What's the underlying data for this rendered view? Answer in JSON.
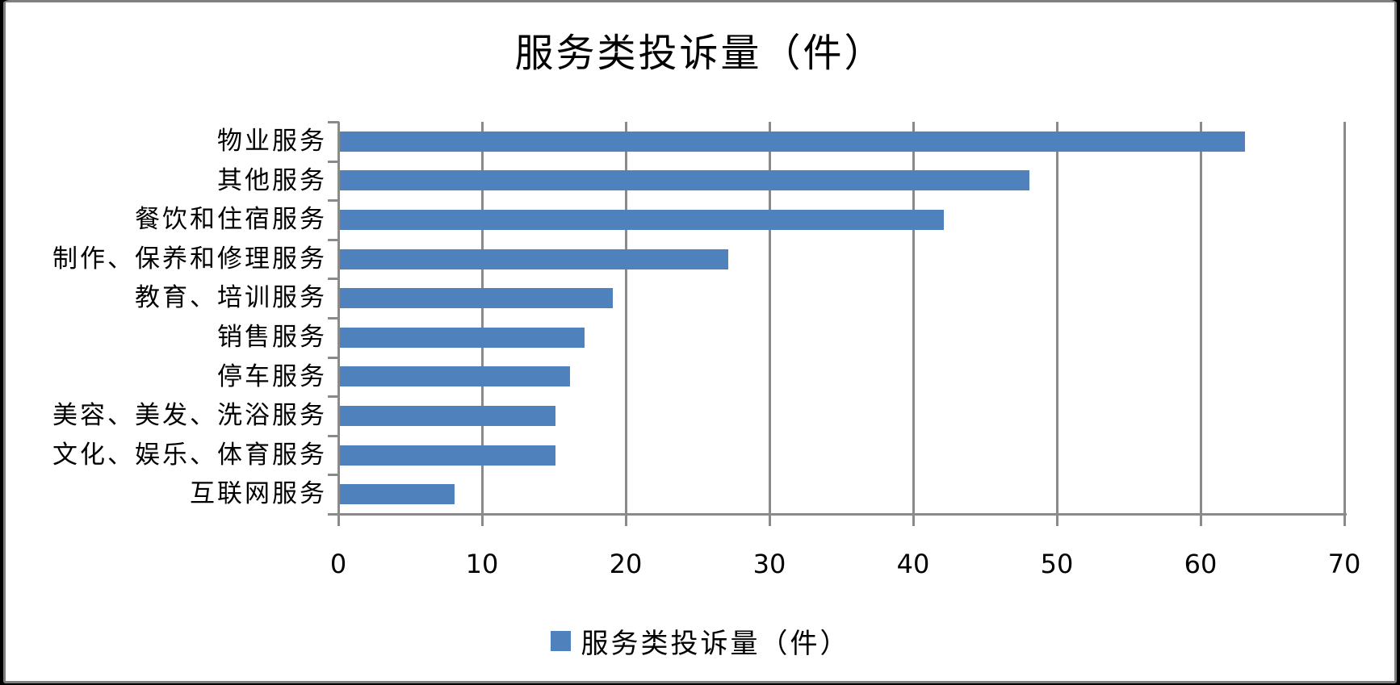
{
  "chart_data": {
    "type": "bar",
    "orientation": "horizontal",
    "title": "服务类投诉量（件）",
    "categories": [
      "物业服务",
      "其他服务",
      "餐饮和住宿服务",
      "制作、保养和修理服务",
      "教育、培训服务",
      "销售服务",
      "停车服务",
      "美容、美发、洗浴服务",
      "文化、娱乐、体育服务",
      "互联网服务"
    ],
    "series": [
      {
        "name": "服务类投诉量（件）",
        "values": [
          63,
          48,
          42,
          27,
          19,
          17,
          16,
          15,
          15,
          8
        ]
      }
    ],
    "xlabel": "",
    "ylabel": "",
    "xlim": [
      0,
      70
    ],
    "x_ticks": [
      0,
      10,
      20,
      30,
      40,
      50,
      60,
      70
    ],
    "grid": true,
    "legend": {
      "label": "服务类投诉量（件）",
      "position": "bottom"
    },
    "colors": {
      "bar": "#4F81BD",
      "gridline": "#8A8A8A",
      "axis": "#8A8A8A",
      "text": "#000000",
      "chart_background": "#FFFFFF",
      "chart_border": "#7F7F7F",
      "outer_frame": "#000000"
    }
  }
}
